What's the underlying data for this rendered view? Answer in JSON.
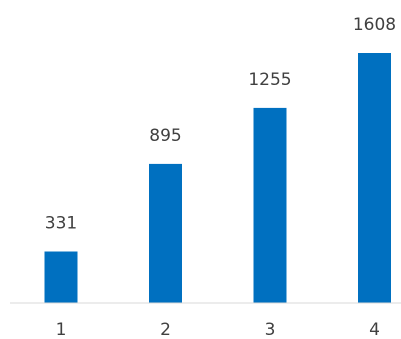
{
  "chart_data": {
    "type": "bar",
    "categories": [
      "1",
      "2",
      "3",
      "4"
    ],
    "values": [
      331,
      895,
      1255,
      1608
    ],
    "data_labels": [
      "331",
      "895",
      "1255",
      "1608"
    ],
    "title": "",
    "xlabel": "",
    "ylabel": "",
    "ylim": [
      0,
      1608
    ],
    "grid": false,
    "legend": "none",
    "colors": {
      "bar": "#0070C0",
      "axis": "#D9D9D9",
      "text": "#404040",
      "background": "#FFFFFF"
    }
  }
}
